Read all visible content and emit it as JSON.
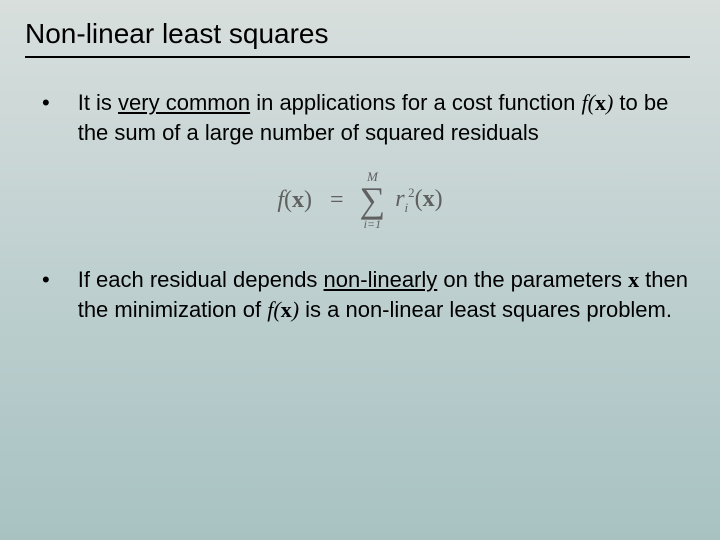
{
  "slide": {
    "title": "Non-linear least squares",
    "bullets": [
      {
        "pre": "It is ",
        "emph": "very common",
        "mid": " in applications for a cost function ",
        "fn": "f",
        "argopen": "(",
        "arg": "x",
        "argclose": ")",
        "post": " to be the sum of a large number of squared residuals"
      },
      {
        "pre": "If each residual depends ",
        "emph": "non-linearly",
        "mid": " on the parameters ",
        "var": "x",
        "mid2": " then the minimization of ",
        "fn": "f",
        "argopen": "(",
        "arg": "x",
        "argclose": ")",
        "post": " is a non-linear least squares problem."
      }
    ],
    "equation": {
      "lhs_f": "f",
      "lhs_open": "(",
      "lhs_x": "x",
      "lhs_close": ")",
      "eq": "=",
      "sum_top": "M",
      "sum_sigma": "∑",
      "sum_bot": "i=1",
      "rhs_r": "r",
      "rhs_sub": "i",
      "rhs_sup": "2",
      "rhs_open": "(",
      "rhs_x": "x",
      "rhs_close": ")"
    }
  },
  "style": {
    "bg_gradient_top": "#d8dfdd",
    "bg_gradient_mid": "#bfd0d0",
    "bg_gradient_bot": "#a8c2c2",
    "title_fontsize": 28,
    "body_fontsize": 22,
    "equation_color": "#606060",
    "text_color": "#000000",
    "underline_color": "#000000",
    "rule_color": "#000000"
  }
}
